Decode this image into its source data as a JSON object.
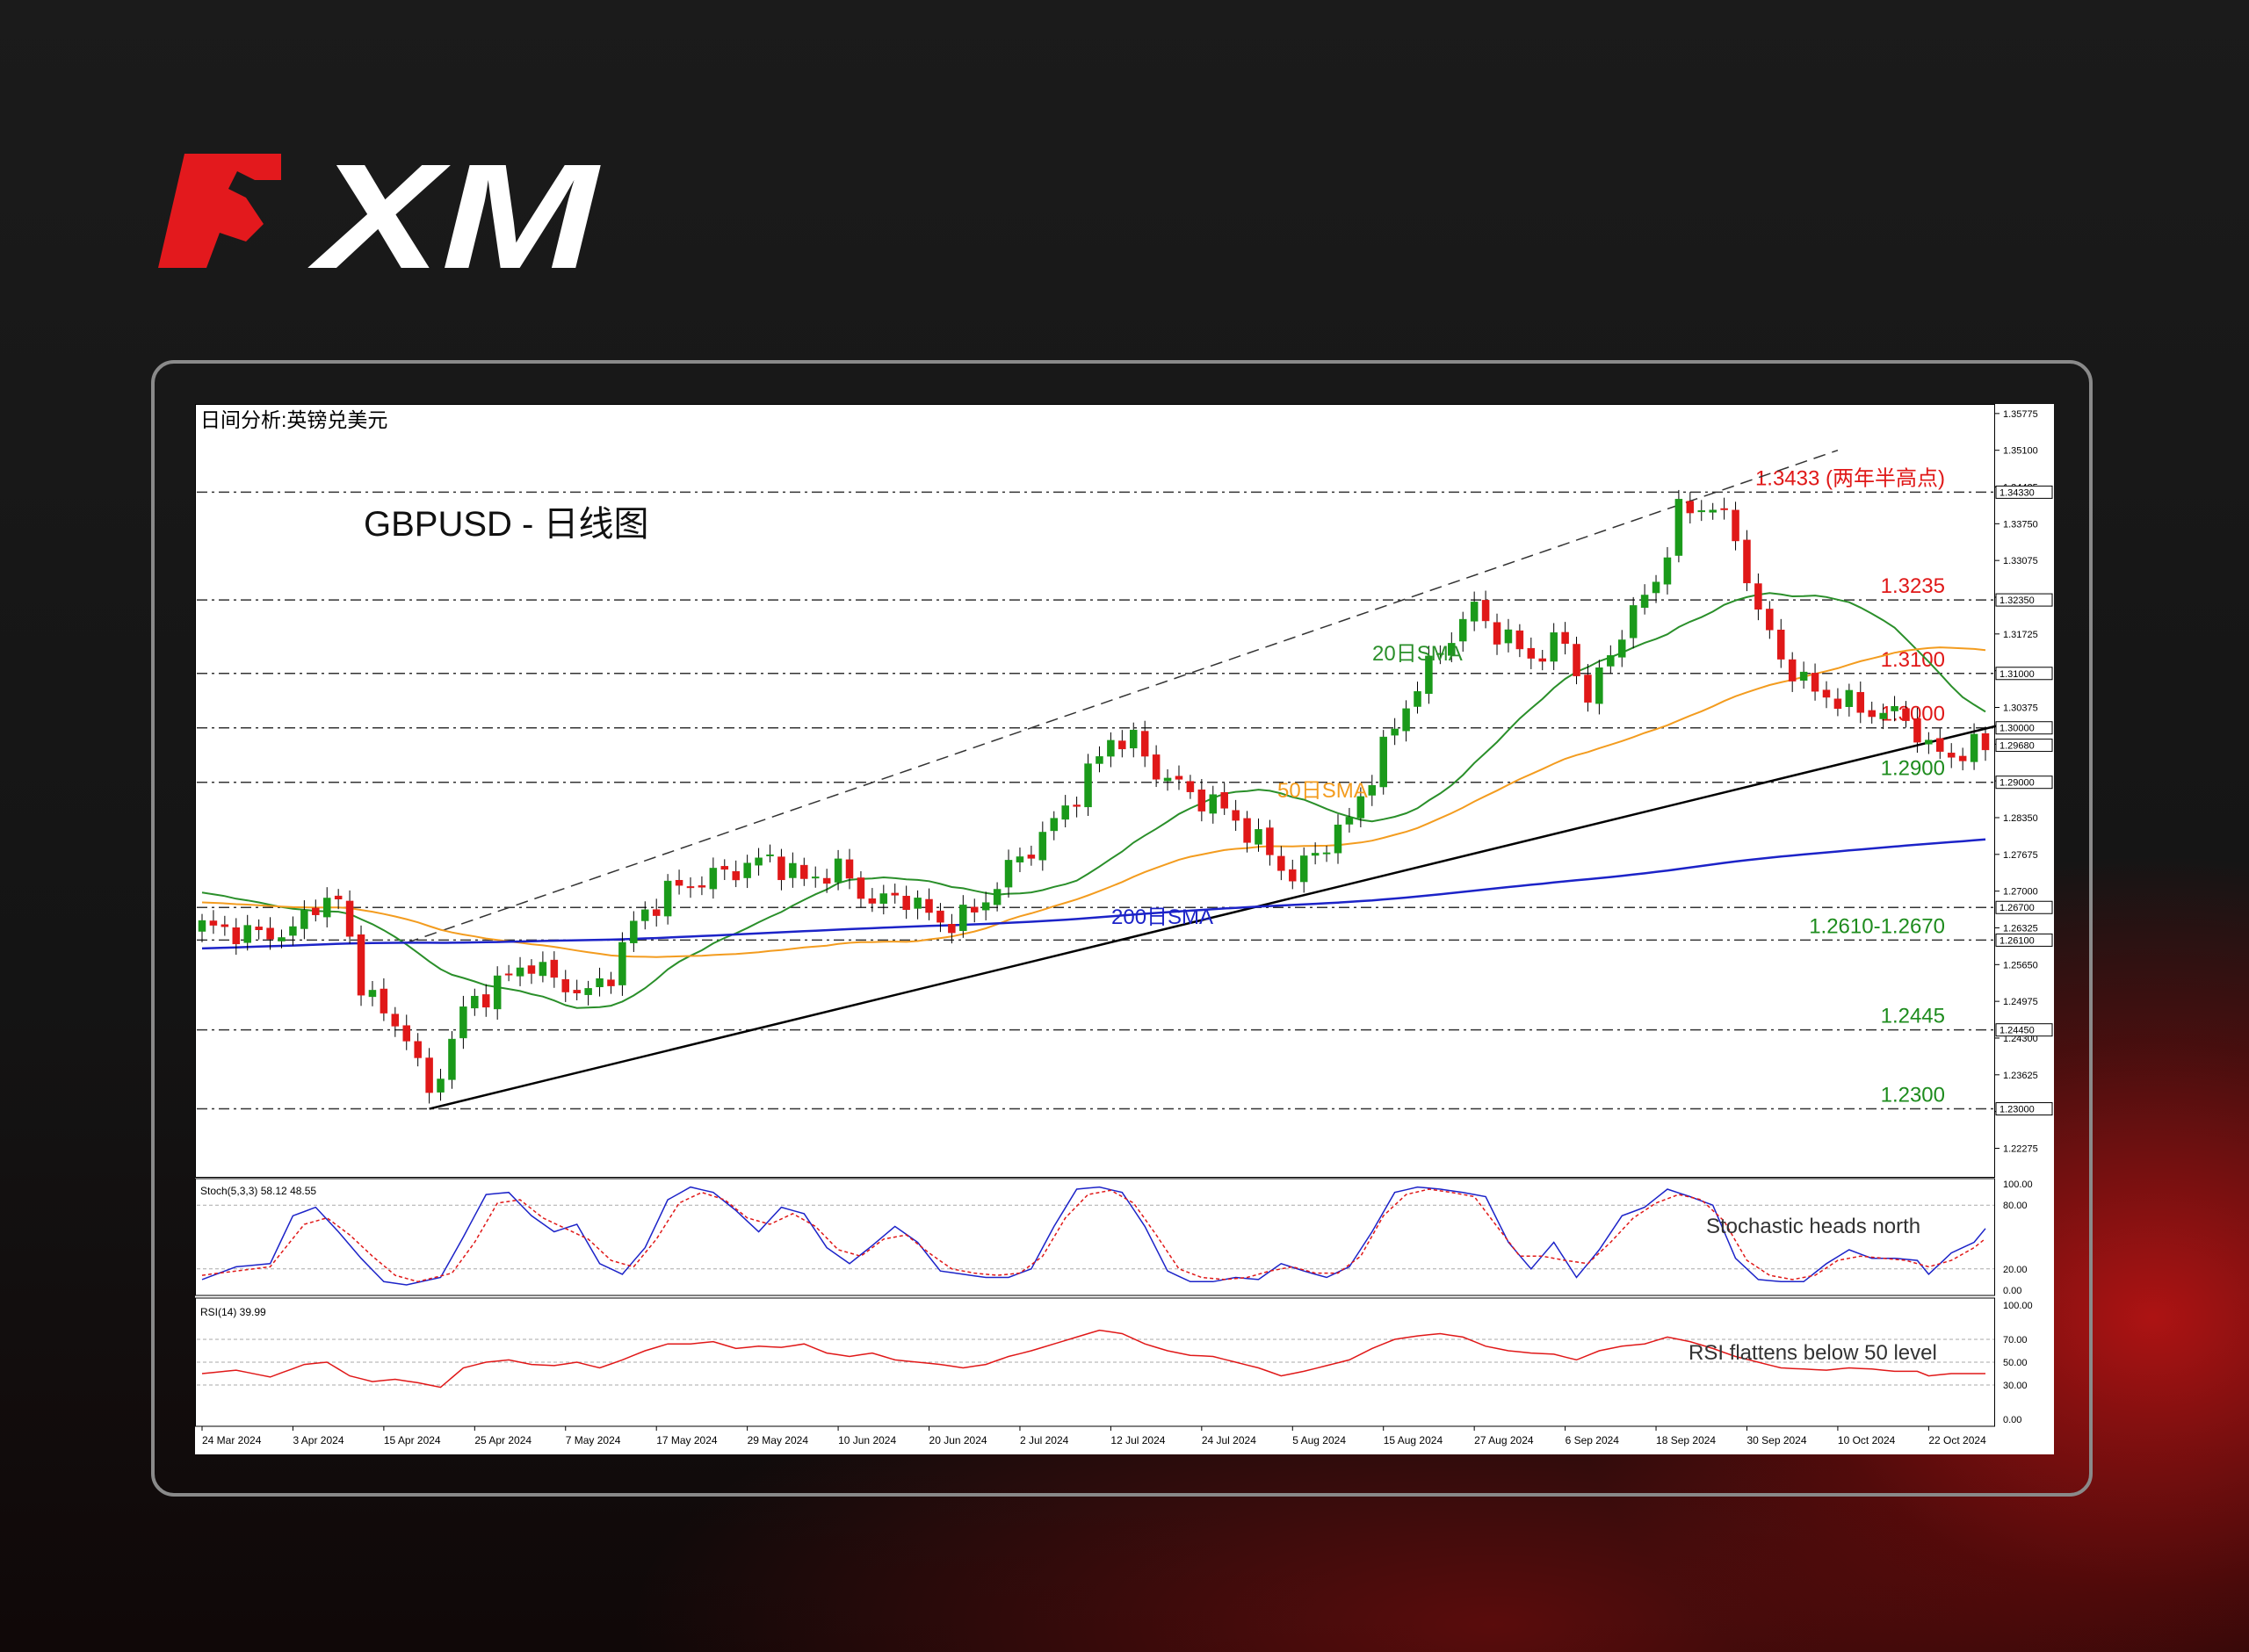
{
  "logo": {
    "text": "XM",
    "color_red": "#e3191d",
    "color_white": "#ffffff"
  },
  "colors": {
    "bull": "#1a9a1a",
    "bear": "#e01818",
    "sma20": "#2a8f2a",
    "sma50": "#f39c1f",
    "sma200": "#1c23c8",
    "red_level": "#e01818",
    "green_level": "#1e8c1e"
  },
  "chart_data": {
    "type": "candlestick",
    "window_title": "日间分析:英镑兑美元",
    "title": "GBPUSD - 日线图",
    "ylim": [
      1.2175,
      1.3595
    ],
    "y_ticks": [
      "1.35775",
      "1.35100",
      "1.34425",
      "1.33750",
      "1.33075",
      "1.32400",
      "1.31725",
      "1.31050",
      "1.30375",
      "1.29700",
      "1.29025",
      "1.28350",
      "1.27675",
      "1.27000",
      "1.26325",
      "1.25650",
      "1.24975",
      "1.24300",
      "1.23625",
      "1.22950",
      "1.22275"
    ],
    "x_ticks": [
      {
        "label": "24 Mar 2024",
        "i": 0
      },
      {
        "label": "3 Apr 2024",
        "i": 8
      },
      {
        "label": "15 Apr 2024",
        "i": 16
      },
      {
        "label": "25 Apr 2024",
        "i": 24
      },
      {
        "label": "7 May 2024",
        "i": 32
      },
      {
        "label": "17 May 2024",
        "i": 40
      },
      {
        "label": "29 May 2024",
        "i": 48
      },
      {
        "label": "10 Jun 2024",
        "i": 56
      },
      {
        "label": "20 Jun 2024",
        "i": 64
      },
      {
        "label": "2 Jul 2024",
        "i": 72
      },
      {
        "label": "12 Jul 2024",
        "i": 80
      },
      {
        "label": "24 Jul 2024",
        "i": 88
      },
      {
        "label": "5 Aug 2024",
        "i": 96
      },
      {
        "label": "15 Aug 2024",
        "i": 104
      },
      {
        "label": "27 Aug 2024",
        "i": 112
      },
      {
        "label": "6 Sep 2024",
        "i": 120
      },
      {
        "label": "18 Sep 2024",
        "i": 128
      },
      {
        "label": "30 Sep 2024",
        "i": 136
      },
      {
        "label": "10 Oct 2024",
        "i": 144
      },
      {
        "label": "22 Oct 2024",
        "i": 152
      }
    ],
    "levels": [
      {
        "value": 1.3433,
        "label": "1.3433 (两年半高点)",
        "axis": "1.34330",
        "color": "red"
      },
      {
        "value": 1.3235,
        "label": "1.3235",
        "axis": "1.32350",
        "color": "red"
      },
      {
        "value": 1.31,
        "label": "1.3100",
        "axis": "1.31000",
        "color": "red"
      },
      {
        "value": 1.3,
        "label": "1.3000",
        "axis": "1.30000",
        "color": "red"
      },
      {
        "value": 1.29,
        "label": "1.2900",
        "axis": "1.29000",
        "color": "green"
      },
      {
        "value": 1.267,
        "label": "",
        "axis": "1.26700",
        "color": "green"
      },
      {
        "value": 1.261,
        "label": "1.2610-1.2670",
        "axis": "1.26100",
        "color": "green"
      },
      {
        "value": 1.2445,
        "label": "1.2445",
        "axis": "1.24450",
        "color": "green"
      },
      {
        "value": 1.23,
        "label": "1.2300",
        "axis": "1.23000",
        "color": "green"
      }
    ],
    "current_price": "1.29680",
    "current_value": 1.2968,
    "sma_labels": {
      "sma20": "20日SMA",
      "sma50": "50日SMA",
      "sma200": "200日SMA"
    },
    "trendlines": {
      "support": [
        {
          "i": 20,
          "p": 1.23
        },
        {
          "i": 157,
          "p": 1.3
        }
      ],
      "channel_upper": [
        {
          "i": 18,
          "p": 1.2605
        },
        {
          "i": 144,
          "p": 1.351
        }
      ]
    },
    "candles": {
      "anchors": [
        [
          0,
          1.2635
        ],
        [
          5,
          1.262
        ],
        [
          8,
          1.2625
        ],
        [
          10,
          1.268
        ],
        [
          12,
          1.268
        ],
        [
          14,
          1.2535
        ],
        [
          16,
          1.247
        ],
        [
          18,
          1.244
        ],
        [
          20,
          1.232
        ],
        [
          23,
          1.248
        ],
        [
          26,
          1.253
        ],
        [
          29,
          1.257
        ],
        [
          31,
          1.2535
        ],
        [
          34,
          1.251
        ],
        [
          36,
          1.255
        ],
        [
          38,
          1.264
        ],
        [
          41,
          1.27
        ],
        [
          44,
          1.272
        ],
        [
          47,
          1.274
        ],
        [
          50,
          1.276
        ],
        [
          53,
          1.272
        ],
        [
          56,
          1.274
        ],
        [
          59,
          1.268
        ],
        [
          62,
          1.269
        ],
        [
          65,
          1.264
        ],
        [
          68,
          1.266
        ],
        [
          71,
          1.274
        ],
        [
          74,
          1.28
        ],
        [
          77,
          1.288
        ],
        [
          80,
          1.298
        ],
        [
          82,
          1.2975
        ],
        [
          84,
          1.292
        ],
        [
          87,
          1.288
        ],
        [
          90,
          1.285
        ],
        [
          93,
          1.279
        ],
        [
          96,
          1.2725
        ],
        [
          98,
          1.277
        ],
        [
          101,
          1.283
        ],
        [
          104,
          1.296
        ],
        [
          107,
          1.308
        ],
        [
          110,
          1.317
        ],
        [
          112,
          1.322
        ],
        [
          114,
          1.3175
        ],
        [
          117,
          1.313
        ],
        [
          120,
          1.316
        ],
        [
          122,
          1.305
        ],
        [
          125,
          1.318
        ],
        [
          128,
          1.327
        ],
        [
          130,
          1.3395
        ],
        [
          133,
          1.341
        ],
        [
          135,
          1.335
        ],
        [
          137,
          1.321
        ],
        [
          139,
          1.313
        ],
        [
          141,
          1.308
        ],
        [
          144,
          1.305
        ],
        [
          147,
          1.303
        ],
        [
          150,
          1.302
        ],
        [
          152,
          1.296
        ],
        [
          154,
          1.295
        ],
        [
          157,
          1.2968
        ]
      ]
    },
    "stoch": {
      "label": "Stoch(5,3,3) 58.12 48.55",
      "ylim": [
        0,
        100
      ],
      "levels": [
        "100.00",
        "80.00",
        "20.00",
        "0.00"
      ],
      "annotation": "Stochastic heads north",
      "k_anchors": [
        [
          0,
          10
        ],
        [
          3,
          22
        ],
        [
          6,
          25
        ],
        [
          8,
          70
        ],
        [
          10,
          78
        ],
        [
          12,
          55
        ],
        [
          14,
          30
        ],
        [
          16,
          8
        ],
        [
          18,
          5
        ],
        [
          21,
          12
        ],
        [
          23,
          50
        ],
        [
          25,
          90
        ],
        [
          27,
          92
        ],
        [
          29,
          70
        ],
        [
          31,
          55
        ],
        [
          33,
          62
        ],
        [
          35,
          25
        ],
        [
          37,
          15
        ],
        [
          39,
          40
        ],
        [
          41,
          85
        ],
        [
          43,
          97
        ],
        [
          45,
          92
        ],
        [
          47,
          75
        ],
        [
          49,
          55
        ],
        [
          51,
          78
        ],
        [
          53,
          72
        ],
        [
          55,
          40
        ],
        [
          57,
          25
        ],
        [
          59,
          42
        ],
        [
          61,
          60
        ],
        [
          63,
          45
        ],
        [
          65,
          18
        ],
        [
          67,
          15
        ],
        [
          69,
          12
        ],
        [
          71,
          12
        ],
        [
          73,
          20
        ],
        [
          75,
          60
        ],
        [
          77,
          95
        ],
        [
          79,
          97
        ],
        [
          81,
          92
        ],
        [
          83,
          60
        ],
        [
          85,
          18
        ],
        [
          87,
          8
        ],
        [
          89,
          8
        ],
        [
          91,
          12
        ],
        [
          93,
          10
        ],
        [
          95,
          25
        ],
        [
          97,
          18
        ],
        [
          99,
          12
        ],
        [
          101,
          22
        ],
        [
          103,
          55
        ],
        [
          105,
          92
        ],
        [
          107,
          97
        ],
        [
          109,
          95
        ],
        [
          111,
          92
        ],
        [
          113,
          88
        ],
        [
          115,
          45
        ],
        [
          117,
          20
        ],
        [
          119,
          45
        ],
        [
          121,
          12
        ],
        [
          123,
          38
        ],
        [
          125,
          70
        ],
        [
          127,
          78
        ],
        [
          129,
          95
        ],
        [
          131,
          88
        ],
        [
          133,
          80
        ],
        [
          135,
          30
        ],
        [
          137,
          10
        ],
        [
          139,
          8
        ],
        [
          141,
          8
        ],
        [
          143,
          25
        ],
        [
          145,
          38
        ],
        [
          147,
          30
        ],
        [
          149,
          30
        ],
        [
          151,
          28
        ],
        [
          152,
          15
        ],
        [
          154,
          35
        ],
        [
          156,
          45
        ],
        [
          157,
          58
        ]
      ],
      "d_anchors": [
        [
          0,
          14
        ],
        [
          3,
          18
        ],
        [
          6,
          22
        ],
        [
          9,
          62
        ],
        [
          11,
          68
        ],
        [
          13,
          52
        ],
        [
          15,
          32
        ],
        [
          17,
          14
        ],
        [
          19,
          8
        ],
        [
          22,
          16
        ],
        [
          24,
          45
        ],
        [
          26,
          82
        ],
        [
          28,
          85
        ],
        [
          30,
          68
        ],
        [
          32,
          58
        ],
        [
          34,
          48
        ],
        [
          36,
          28
        ],
        [
          38,
          22
        ],
        [
          40,
          48
        ],
        [
          42,
          82
        ],
        [
          44,
          92
        ],
        [
          46,
          85
        ],
        [
          48,
          68
        ],
        [
          50,
          62
        ],
        [
          52,
          72
        ],
        [
          54,
          60
        ],
        [
          56,
          38
        ],
        [
          58,
          32
        ],
        [
          60,
          48
        ],
        [
          62,
          52
        ],
        [
          64,
          35
        ],
        [
          66,
          20
        ],
        [
          68,
          16
        ],
        [
          70,
          14
        ],
        [
          72,
          16
        ],
        [
          74,
          32
        ],
        [
          76,
          68
        ],
        [
          78,
          90
        ],
        [
          80,
          94
        ],
        [
          82,
          82
        ],
        [
          84,
          52
        ],
        [
          86,
          20
        ],
        [
          88,
          12
        ],
        [
          90,
          10
        ],
        [
          92,
          12
        ],
        [
          94,
          18
        ],
        [
          96,
          22
        ],
        [
          98,
          16
        ],
        [
          100,
          16
        ],
        [
          102,
          32
        ],
        [
          104,
          70
        ],
        [
          106,
          90
        ],
        [
          108,
          95
        ],
        [
          110,
          92
        ],
        [
          112,
          88
        ],
        [
          114,
          60
        ],
        [
          116,
          32
        ],
        [
          118,
          32
        ],
        [
          120,
          28
        ],
        [
          122,
          25
        ],
        [
          124,
          45
        ],
        [
          126,
          68
        ],
        [
          128,
          82
        ],
        [
          130,
          90
        ],
        [
          132,
          85
        ],
        [
          134,
          65
        ],
        [
          136,
          28
        ],
        [
          138,
          14
        ],
        [
          140,
          10
        ],
        [
          142,
          14
        ],
        [
          144,
          28
        ],
        [
          146,
          32
        ],
        [
          148,
          30
        ],
        [
          150,
          28
        ],
        [
          152,
          22
        ],
        [
          154,
          28
        ],
        [
          156,
          40
        ],
        [
          157,
          48.5
        ]
      ]
    },
    "rsi": {
      "label": "RSI(14) 39.99",
      "ylim": [
        0,
        100
      ],
      "levels": [
        "100.00",
        "70.00",
        "50.00",
        "30.00",
        "0.00"
      ],
      "annotation": "RSI flattens below 50 level",
      "anchors": [
        [
          0,
          40
        ],
        [
          3,
          43
        ],
        [
          6,
          37
        ],
        [
          9,
          48
        ],
        [
          11,
          50
        ],
        [
          13,
          38
        ],
        [
          15,
          33
        ],
        [
          17,
          35
        ],
        [
          19,
          32
        ],
        [
          21,
          28
        ],
        [
          23,
          45
        ],
        [
          25,
          50
        ],
        [
          27,
          52
        ],
        [
          29,
          48
        ],
        [
          31,
          47
        ],
        [
          33,
          50
        ],
        [
          35,
          45
        ],
        [
          37,
          52
        ],
        [
          39,
          60
        ],
        [
          41,
          66
        ],
        [
          43,
          66
        ],
        [
          45,
          68
        ],
        [
          47,
          62
        ],
        [
          49,
          64
        ],
        [
          51,
          63
        ],
        [
          53,
          66
        ],
        [
          55,
          58
        ],
        [
          57,
          55
        ],
        [
          59,
          58
        ],
        [
          61,
          52
        ],
        [
          63,
          50
        ],
        [
          65,
          48
        ],
        [
          67,
          45
        ],
        [
          69,
          48
        ],
        [
          71,
          55
        ],
        [
          73,
          60
        ],
        [
          75,
          66
        ],
        [
          77,
          72
        ],
        [
          79,
          78
        ],
        [
          81,
          75
        ],
        [
          83,
          66
        ],
        [
          85,
          60
        ],
        [
          87,
          56
        ],
        [
          89,
          55
        ],
        [
          91,
          50
        ],
        [
          93,
          45
        ],
        [
          95,
          38
        ],
        [
          97,
          42
        ],
        [
          99,
          47
        ],
        [
          101,
          52
        ],
        [
          103,
          62
        ],
        [
          105,
          70
        ],
        [
          107,
          73
        ],
        [
          109,
          75
        ],
        [
          111,
          72
        ],
        [
          113,
          64
        ],
        [
          115,
          60
        ],
        [
          117,
          58
        ],
        [
          119,
          57
        ],
        [
          121,
          52
        ],
        [
          123,
          60
        ],
        [
          125,
          64
        ],
        [
          127,
          66
        ],
        [
          129,
          72
        ],
        [
          131,
          68
        ],
        [
          133,
          62
        ],
        [
          135,
          55
        ],
        [
          137,
          50
        ],
        [
          139,
          45
        ],
        [
          141,
          44
        ],
        [
          143,
          43
        ],
        [
          145,
          45
        ],
        [
          147,
          44
        ],
        [
          149,
          42
        ],
        [
          151,
          42
        ],
        [
          152,
          38
        ],
        [
          154,
          40
        ],
        [
          157,
          40
        ]
      ]
    }
  }
}
